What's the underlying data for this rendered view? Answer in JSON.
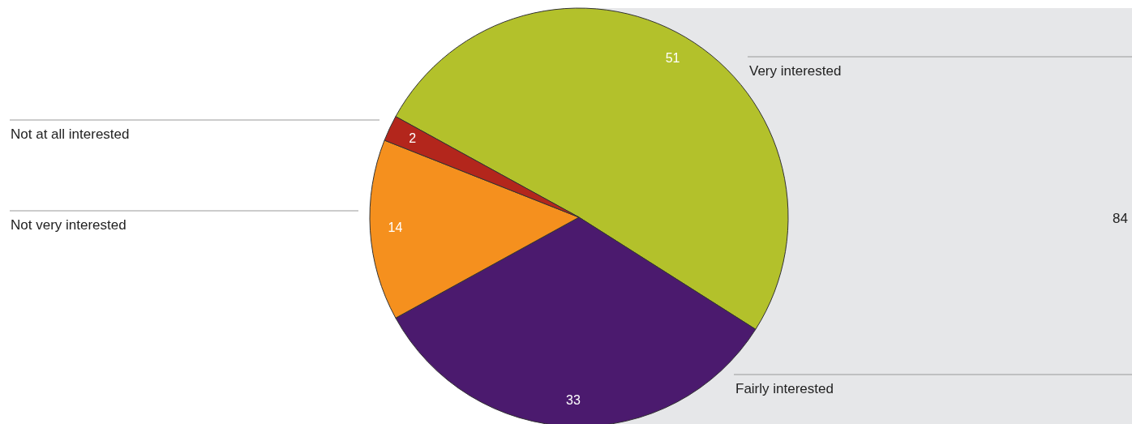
{
  "chart_data": {
    "type": "pie",
    "categories": [
      "Very interested",
      "Fairly interested",
      "Not very interested",
      "Not at all interested"
    ],
    "values": [
      51,
      33,
      14,
      2
    ],
    "colors": [
      "#b3c12b",
      "#4b1a6e",
      "#f5901e",
      "#b3261c"
    ],
    "data_labels": true,
    "annotations": [
      "84"
    ]
  }
}
